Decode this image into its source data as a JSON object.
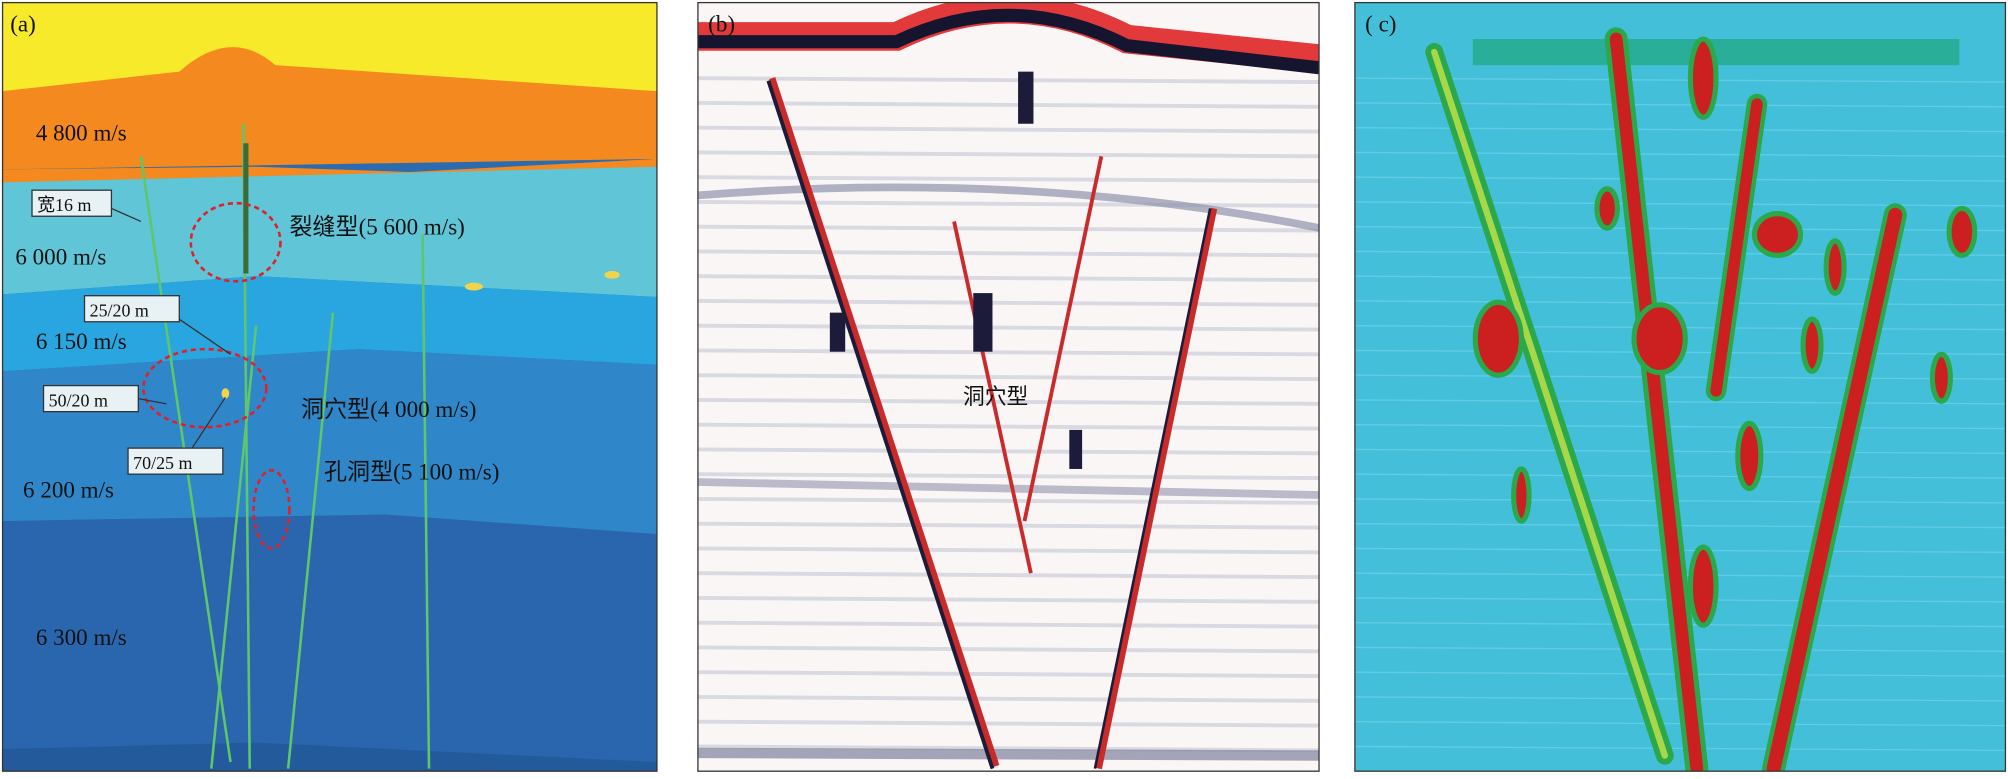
{
  "panels": [
    {
      "label": "(a)",
      "layers": [
        "4 800 m/s",
        "6 000 m/s",
        "6 150 m/s",
        "6 200 m/s",
        "6 300 m/s"
      ],
      "widths": [
        "宽16 m",
        "25/20 m",
        "50/20 m",
        "70/25 m"
      ],
      "types": [
        "裂缝型(5 600 m/s)",
        "洞穴型(4 000 m/s)",
        "孔洞型(5 100 m/s)"
      ]
    },
    {
      "label": "(b)",
      "annotation": "洞穴型"
    },
    {
      "label": "( c)"
    }
  ]
}
